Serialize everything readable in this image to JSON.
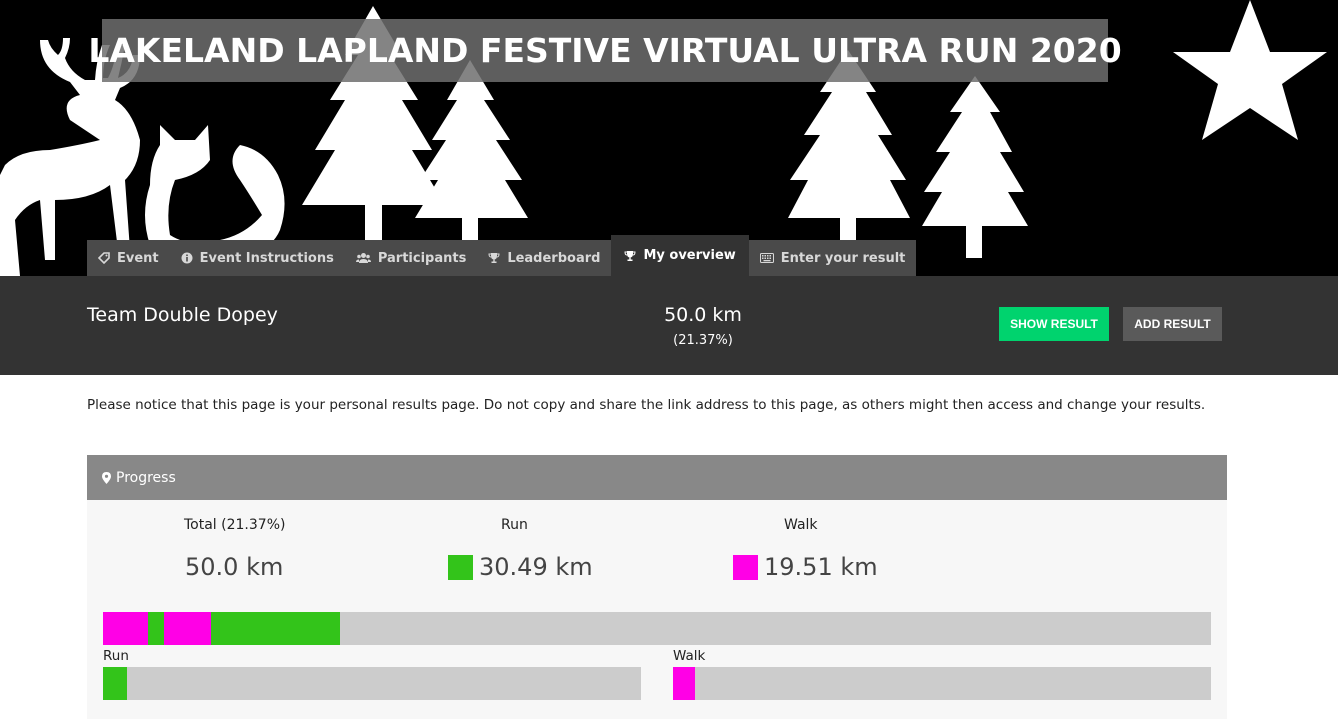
{
  "hero": {
    "title": "LAKELAND LAPLAND FESTIVE VIRTUAL ULTRA RUN 2020"
  },
  "tabs": [
    {
      "label": "Event",
      "icon": "tag-icon",
      "active": false
    },
    {
      "label": "Event Instructions",
      "icon": "info-icon",
      "active": false
    },
    {
      "label": "Participants",
      "icon": "users-icon",
      "active": false
    },
    {
      "label": "Leaderboard",
      "icon": "trophy-icon",
      "active": false
    },
    {
      "label": "My overview",
      "icon": "trophy-icon",
      "active": true
    },
    {
      "label": "Enter your result",
      "icon": "keyboard-icon",
      "active": false
    }
  ],
  "summary": {
    "team": "Team Double Dopey",
    "distance": "50.0 km",
    "percent": "(21.37%)",
    "show_result_label": "SHOW RESULT",
    "add_result_label": "ADD RESULT"
  },
  "notice": "Please notice that this page is your personal results page. Do not copy and share the link address to this page, as others might then access and change your results.",
  "progress": {
    "header": "Progress",
    "total_label": "Total (21.37%)",
    "total_value": "50.0 km",
    "run_label": "Run",
    "run_value": "30.49 km",
    "walk_label": "Walk",
    "walk_value": "19.51 km",
    "total_fraction": 0.2137,
    "run_bar_label": "Run",
    "walk_bar_label": "Walk",
    "run_fraction": 0.044,
    "walk_fraction": 0.041,
    "segments": [
      {
        "activity": "walk",
        "fraction": 0.0405
      },
      {
        "activity": "run",
        "fraction": 0.0145
      },
      {
        "activity": "walk",
        "fraction": 0.0425
      },
      {
        "activity": "run",
        "fraction": 0.1162
      }
    ],
    "colors": {
      "run": "#33c41a",
      "walk": "#ff00e6",
      "track": "#cccccc"
    }
  }
}
